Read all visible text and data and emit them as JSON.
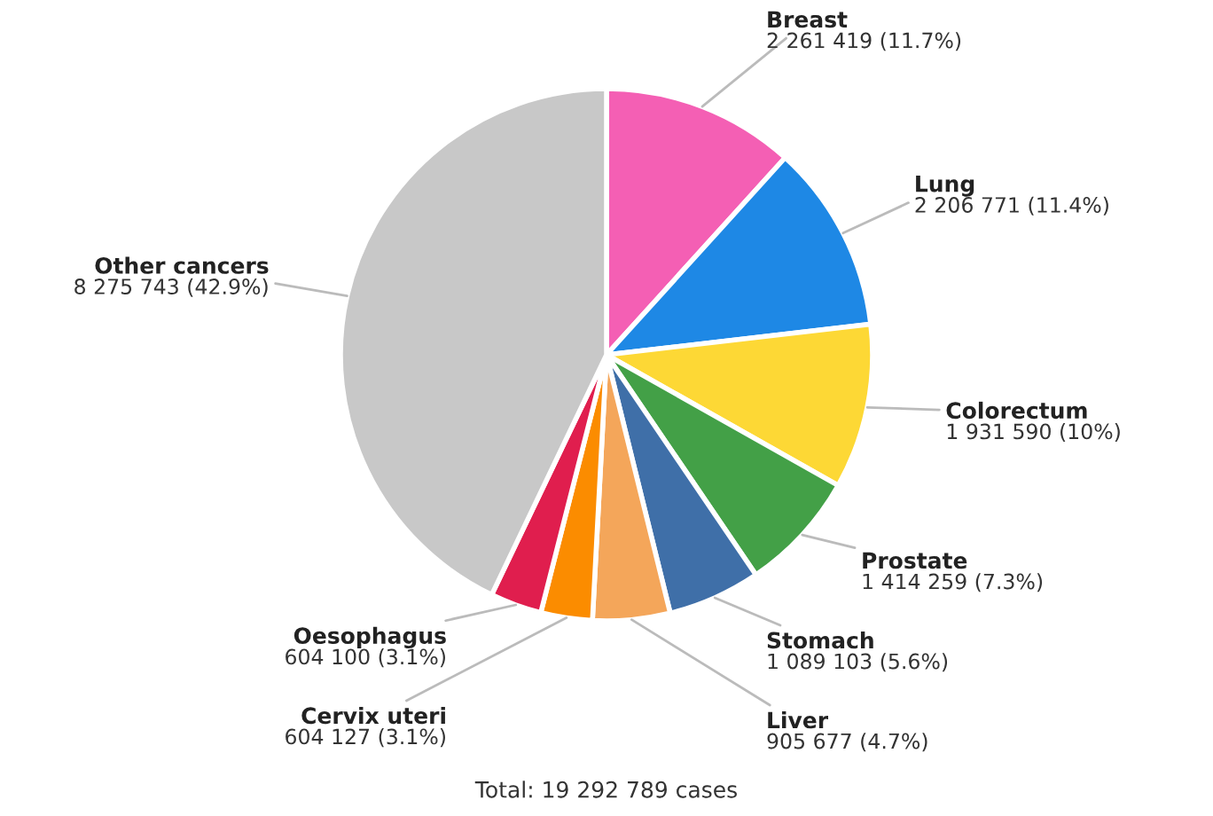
{
  "chart_data": {
    "type": "pie",
    "categories": [
      "Breast",
      "Lung",
      "Colorectum",
      "Prostate",
      "Stomach",
      "Liver",
      "Cervix uteri",
      "Oesophagus",
      "Other cancers"
    ],
    "values": [
      2261419,
      2206771,
      1931590,
      1414259,
      1089103,
      905677,
      604127,
      604100,
      8275743
    ],
    "colors": [
      "#f45fb4",
      "#1e88e5",
      "#fdd835",
      "#43a047",
      "#3f6fa8",
      "#f4a65a",
      "#fb8c00",
      "#e01e4e",
      "#c8c8c8"
    ],
    "value_labels": [
      "2 261 419 (11.7%)",
      "2 206 771 (11.4%)",
      "1 931 590 (10%)",
      "1 414 259 (7.3%)",
      "1 089 103 (5.6%)",
      "905 677 (4.7%)",
      "604 127 (3.1%)",
      "604 100 (3.1%)",
      "8 275 743 (42.9%)"
    ],
    "annotations": [
      "Total: 19 292 789 cases"
    ]
  }
}
